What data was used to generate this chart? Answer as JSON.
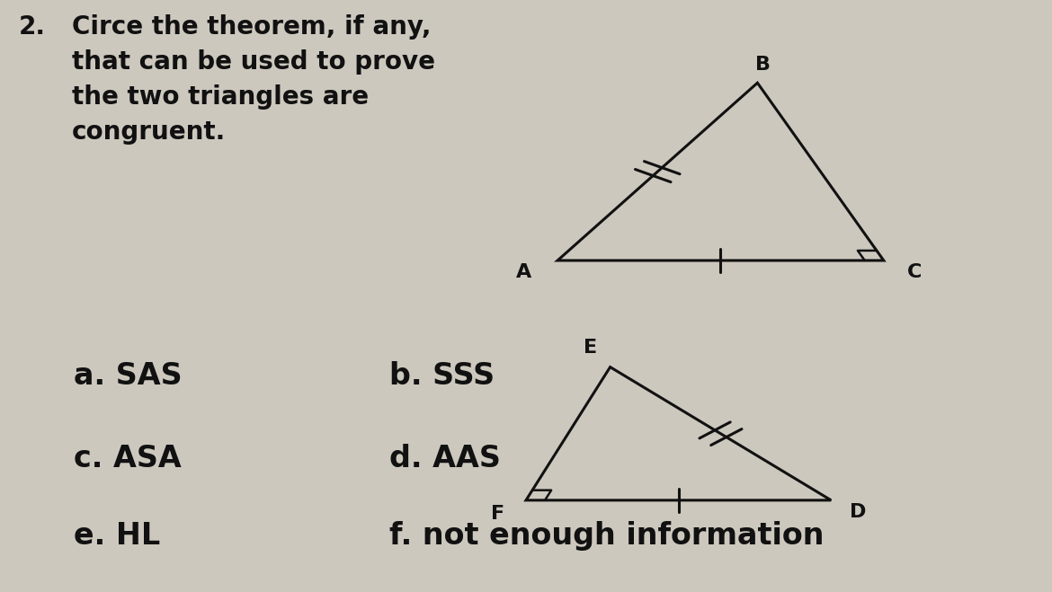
{
  "background_color": "#cdc8be",
  "title_num": "2.",
  "title_text": "Circe the theorem, if any,\nthat can be used to prove\nthe two triangles are\ncongruent.",
  "title_fontsize": 20,
  "title_fontweight": "bold",
  "options": [
    [
      "a. SAS",
      "b. SSS"
    ],
    [
      "c. ASA",
      "d. AAS"
    ],
    [
      "e. HL",
      "f. not enough information"
    ]
  ],
  "options_fontsize": 24,
  "line_color": "#111111",
  "text_color": "#111111",
  "label_fontsize": 16,
  "tri1": {
    "A": [
      0.53,
      0.56
    ],
    "B": [
      0.72,
      0.86
    ],
    "C": [
      0.84,
      0.56
    ]
  },
  "tri2": {
    "E": [
      0.58,
      0.38
    ],
    "F": [
      0.5,
      0.155
    ],
    "D": [
      0.79,
      0.155
    ]
  }
}
